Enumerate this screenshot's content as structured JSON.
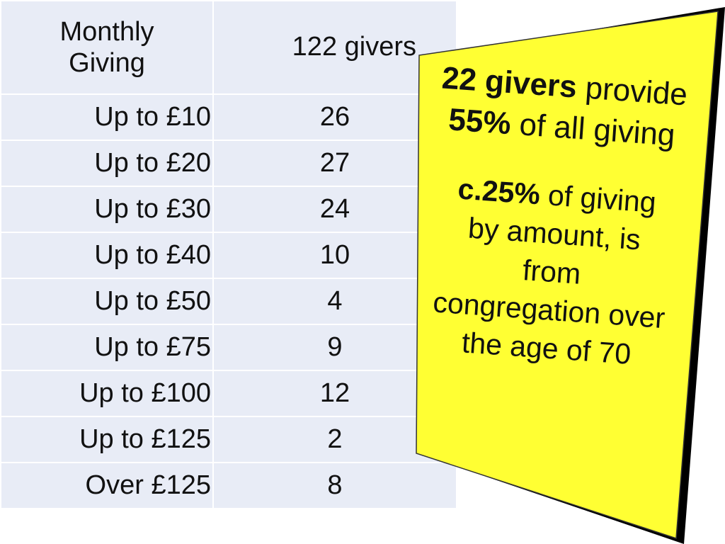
{
  "table": {
    "header": [
      "Monthly Giving",
      "122 givers"
    ],
    "rows": [
      [
        "Up to £10",
        26
      ],
      [
        "Up to £20",
        27
      ],
      [
        "Up to £30",
        24
      ],
      [
        "Up to £40",
        10
      ],
      [
        "Up to £50",
        4
      ],
      [
        "Up to £75",
        9
      ],
      [
        "Up to £100",
        12
      ],
      [
        "Up to £125",
        2
      ],
      [
        "Over £125",
        8
      ]
    ]
  },
  "callout": {
    "paragraphs": [
      [
        {
          "text": "22 givers",
          "bold": true
        },
        {
          "text": "provide",
          "bold": false
        },
        {
          "text": "55%",
          "bold": true
        },
        {
          "text": "of all giving",
          "bold": false
        }
      ],
      [
        {
          "text": "c.25%",
          "bold": true
        },
        {
          "text": "of giving by amount, is from congregation over the age of 70",
          "bold": false
        }
      ]
    ]
  }
}
